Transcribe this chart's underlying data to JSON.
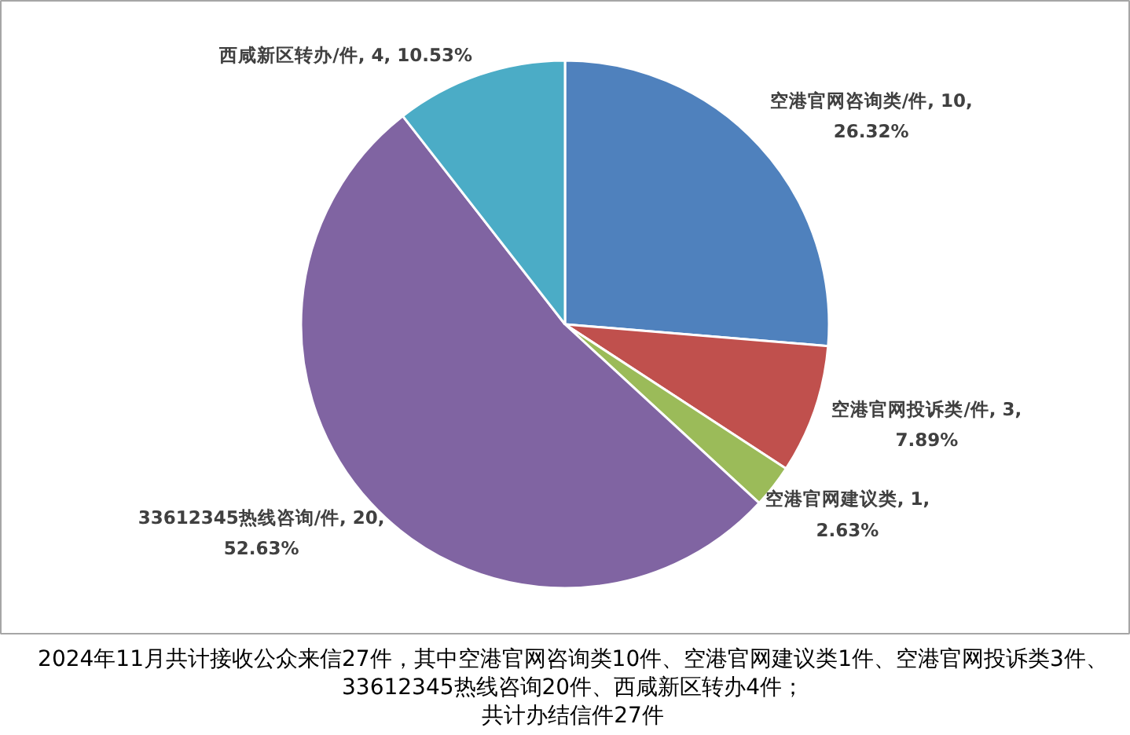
{
  "chart_data": {
    "type": "pie",
    "categories": [
      "空港官网咨询类/件",
      "空港官网投诉类/件",
      "空港官网建议类",
      "33612345热线咨询/件",
      "西咸新区转办/件"
    ],
    "values": [
      10,
      3,
      1,
      20,
      4
    ],
    "colors": [
      "#4f81bd",
      "#c0504d",
      "#9bbb59",
      "#8064a2",
      "#4bacc6"
    ],
    "value_labels": [
      "10, 26.32%",
      "3, 7.89%",
      "1, 2.63%",
      "20, 52.63%",
      "4, 10.53%"
    ],
    "annotations": [
      "2024年11月共计接收公众来信27件，其中空港官网咨询类10件、空港官网建议类1件、空港官网投诉类3件、33612345热线咨询20件、西咸新区转办4件；",
      "共计办结信件27件"
    ]
  }
}
